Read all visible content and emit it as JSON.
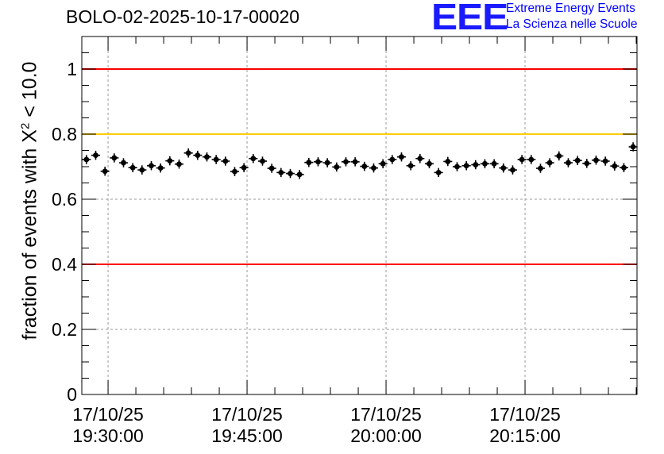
{
  "title": "BOLO-02-2025-10-17-00020",
  "logo": {
    "mark": "EEE",
    "line1": "Extreme Energy Events",
    "line2": "La Scienza nelle Scuole"
  },
  "chart_data": {
    "type": "scatter",
    "ylabel": {
      "prefix": "fraction of events with ",
      "symbol": "X",
      "exponent": "2",
      "suffix": " < 10.0"
    },
    "ylim": [
      0,
      1.1
    ],
    "yticks": [
      0,
      0.2,
      0.4,
      0.6,
      0.8,
      1
    ],
    "ytick_labels": [
      "0",
      "0.2",
      "0.4",
      "0.6",
      "0.8",
      "1"
    ],
    "xlim": [
      "2025-10-17 19:27:10",
      "2025-10-17 20:27:05"
    ],
    "xticks": [
      {
        "x": "2025-10-17 19:30:00",
        "label": [
          "17/10/25",
          "19:30:00"
        ]
      },
      {
        "x": "2025-10-17 19:45:00",
        "label": [
          "17/10/25",
          "19:45:00"
        ]
      },
      {
        "x": "2025-10-17 20:00:00",
        "label": [
          "17/10/25",
          "20:00:00"
        ]
      },
      {
        "x": "2025-10-17 20:15:00",
        "label": [
          "17/10/25",
          "20:15:00"
        ]
      }
    ],
    "grid": true,
    "reference_lines": [
      {
        "y": 1.0,
        "color": "#ff0000"
      },
      {
        "y": 0.8,
        "color": "#ffcc00"
      },
      {
        "y": 0.4,
        "color": "#ff0000"
      }
    ],
    "marker_color": "#000000",
    "series": [
      {
        "x": [
          "2025-10-17 19:27:40",
          "2025-10-17 19:28:40",
          "2025-10-17 19:29:40",
          "2025-10-17 19:30:40",
          "2025-10-17 19:31:40",
          "2025-10-17 19:32:40",
          "2025-10-17 19:33:40",
          "2025-10-17 19:34:40",
          "2025-10-17 19:35:40",
          "2025-10-17 19:36:40",
          "2025-10-17 19:37:40",
          "2025-10-17 19:38:40",
          "2025-10-17 19:39:40",
          "2025-10-17 19:40:40",
          "2025-10-17 19:41:40",
          "2025-10-17 19:42:40",
          "2025-10-17 19:43:40",
          "2025-10-17 19:44:40",
          "2025-10-17 19:45:40",
          "2025-10-17 19:46:40",
          "2025-10-17 19:47:40",
          "2025-10-17 19:48:40",
          "2025-10-17 19:49:40",
          "2025-10-17 19:50:40",
          "2025-10-17 19:51:40",
          "2025-10-17 19:52:40",
          "2025-10-17 19:53:40",
          "2025-10-17 19:54:40",
          "2025-10-17 19:55:40",
          "2025-10-17 19:56:40",
          "2025-10-17 19:57:40",
          "2025-10-17 19:58:40",
          "2025-10-17 19:59:40",
          "2025-10-17 20:00:40",
          "2025-10-17 20:01:40",
          "2025-10-17 20:02:40",
          "2025-10-17 20:03:40",
          "2025-10-17 20:04:40",
          "2025-10-17 20:05:40",
          "2025-10-17 20:06:40",
          "2025-10-17 20:07:40",
          "2025-10-17 20:08:40",
          "2025-10-17 20:09:40",
          "2025-10-17 20:10:40",
          "2025-10-17 20:11:40",
          "2025-10-17 20:12:40",
          "2025-10-17 20:13:40",
          "2025-10-17 20:14:40",
          "2025-10-17 20:15:40",
          "2025-10-17 20:16:40",
          "2025-10-17 20:17:40",
          "2025-10-17 20:18:40",
          "2025-10-17 20:19:40",
          "2025-10-17 20:20:40",
          "2025-10-17 20:21:40",
          "2025-10-17 20:22:40",
          "2025-10-17 20:23:40",
          "2025-10-17 20:24:40",
          "2025-10-17 20:25:40",
          "2025-10-17 20:26:40"
        ],
        "y": [
          0.722,
          0.735,
          0.686,
          0.727,
          0.712,
          0.697,
          0.69,
          0.703,
          0.696,
          0.718,
          0.708,
          0.742,
          0.735,
          0.73,
          0.722,
          0.717,
          0.685,
          0.697,
          0.725,
          0.717,
          0.695,
          0.682,
          0.679,
          0.676,
          0.713,
          0.715,
          0.712,
          0.699,
          0.715,
          0.715,
          0.701,
          0.696,
          0.709,
          0.722,
          0.73,
          0.703,
          0.725,
          0.709,
          0.682,
          0.716,
          0.7,
          0.703,
          0.706,
          0.709,
          0.709,
          0.696,
          0.69,
          0.722,
          0.722,
          0.695,
          0.712,
          0.733,
          0.712,
          0.719,
          0.71,
          0.72,
          0.717,
          0.702,
          0.697,
          0.761
        ],
        "yerr": [
          0.014,
          0.014,
          0.014,
          0.014,
          0.014,
          0.014,
          0.014,
          0.014,
          0.014,
          0.014,
          0.014,
          0.014,
          0.014,
          0.014,
          0.014,
          0.014,
          0.014,
          0.014,
          0.014,
          0.014,
          0.014,
          0.014,
          0.014,
          0.014,
          0.014,
          0.014,
          0.014,
          0.014,
          0.014,
          0.014,
          0.014,
          0.014,
          0.014,
          0.014,
          0.014,
          0.014,
          0.014,
          0.014,
          0.014,
          0.014,
          0.014,
          0.014,
          0.014,
          0.014,
          0.014,
          0.014,
          0.014,
          0.014,
          0.014,
          0.014,
          0.014,
          0.014,
          0.014,
          0.014,
          0.014,
          0.014,
          0.014,
          0.014,
          0.014,
          0.014
        ]
      }
    ]
  }
}
